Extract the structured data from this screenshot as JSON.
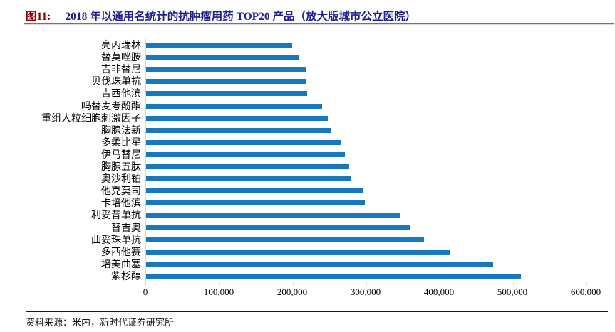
{
  "title": {
    "tag": "图11:",
    "text": "2018 年以通用名统计的抗肿瘤用药 TOP20 产品（放大版城市公立医院）"
  },
  "footer": {
    "text": "资料来源：米内，新时代证券研究所"
  },
  "colors": {
    "bar": "#1778BE",
    "title_tag": "#8B0000",
    "title_text": "#1F1F8F",
    "axis": "#D9D9D9"
  },
  "chart_data": {
    "type": "bar",
    "orientation": "horizontal",
    "title": "2018 年以通用名统计的抗肿瘤用药 TOP20 产品（放大版城市公立医院）",
    "categories": [
      "亮丙瑞林",
      "替莫唑胺",
      "吉非替尼",
      "贝伐珠单抗",
      "吉西他滨",
      "吗替麦考酚酯",
      "重组人粒细胞刺激因子",
      "胸腺法新",
      "多柔比星",
      "伊马替尼",
      "胸腺五肽",
      "奥沙利铂",
      "他克莫司",
      "卡培他滨",
      "利妥昔单抗",
      "替吉奥",
      "曲妥珠单抗",
      "多西他赛",
      "培美曲塞",
      "紫杉醇"
    ],
    "values": [
      199000,
      208000,
      217000,
      217000,
      219000,
      240000,
      248000,
      252000,
      266000,
      271000,
      277000,
      280000,
      296000,
      298000,
      346000,
      359000,
      379000,
      415000,
      473000,
      511000
    ],
    "xlim": [
      0,
      600000
    ],
    "x_ticks": [
      "0",
      "100,000",
      "200,000",
      "300,000",
      "400,000",
      "500,000",
      "600,000"
    ],
    "xlabel": "",
    "ylabel": "",
    "grid": false,
    "legend": false
  }
}
